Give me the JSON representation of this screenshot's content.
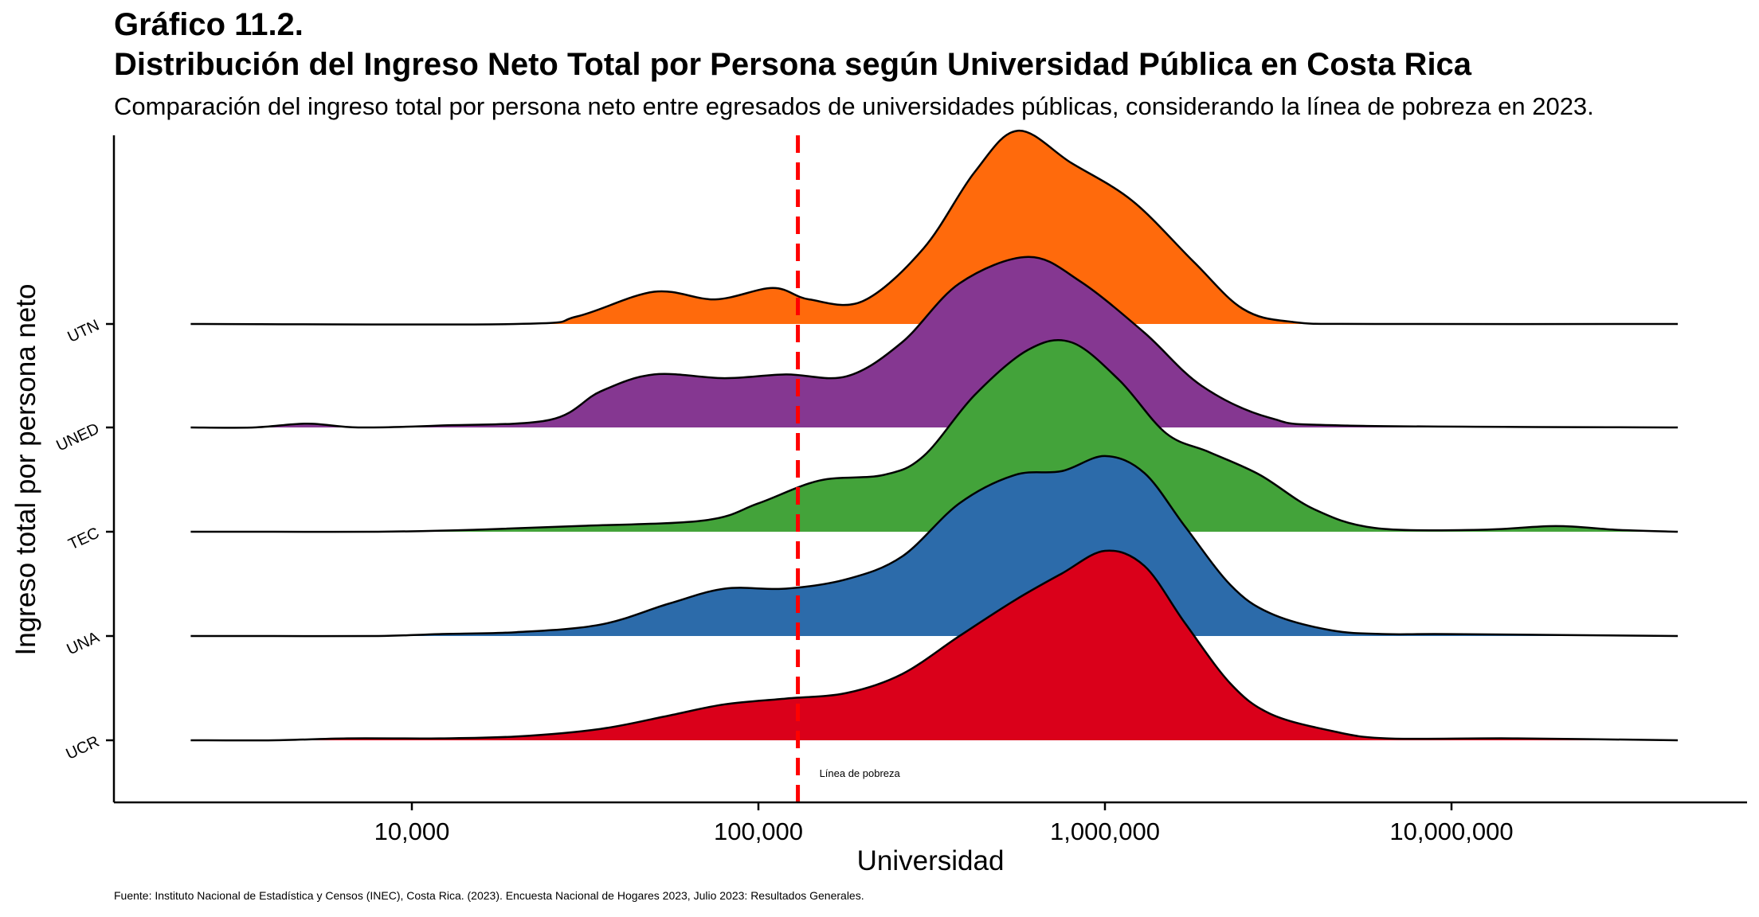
{
  "chart_data": {
    "type": "ridgeline",
    "title": "Gráfico 11.2.",
    "subtitle_main": "Distribución del Ingreso Neto Total por Persona según Universidad Pública en Costa Rica",
    "subtitle": "Comparación del ingreso total por persona neto entre egresados de universidades públicas, considerando la línea de pobreza en 2023.",
    "xlabel": "Universidad",
    "ylabel": "Ingreso total por persona neto",
    "x_scale": "log10",
    "xlim": [
      2300,
      45000000
    ],
    "x_ticks": [
      {
        "value": 10000,
        "label": "10,000"
      },
      {
        "value": 100000,
        "label": "100,000"
      },
      {
        "value": 1000000,
        "label": "1,000,000"
      },
      {
        "value": 10000000,
        "label": "10,000,000"
      }
    ],
    "categories": [
      "UCR",
      "UNA",
      "TEC",
      "UNED",
      "UTN"
    ],
    "series": [
      {
        "name": "UCR",
        "color": "#DA001A",
        "points": [
          [
            2300,
            0.0
          ],
          [
            4000,
            0.0
          ],
          [
            6500,
            0.01
          ],
          [
            12000,
            0.01
          ],
          [
            20000,
            0.02
          ],
          [
            35000,
            0.06
          ],
          [
            55000,
            0.13
          ],
          [
            80000,
            0.19
          ],
          [
            120000,
            0.22
          ],
          [
            180000,
            0.25
          ],
          [
            260000,
            0.35
          ],
          [
            380000,
            0.55
          ],
          [
            550000,
            0.74
          ],
          [
            750000,
            0.88
          ],
          [
            1000000,
            1.0
          ],
          [
            1300000,
            0.92
          ],
          [
            1700000,
            0.62
          ],
          [
            2300000,
            0.3
          ],
          [
            3000000,
            0.14
          ],
          [
            4500000,
            0.05
          ],
          [
            6500000,
            0.01
          ],
          [
            15000000,
            0.01
          ],
          [
            45000000,
            0.0
          ]
        ]
      },
      {
        "name": "UNA",
        "color": "#2C6BAA",
        "points": [
          [
            2300,
            0.0
          ],
          [
            4000,
            0.0
          ],
          [
            8000,
            0.0
          ],
          [
            12000,
            0.01
          ],
          [
            20000,
            0.02
          ],
          [
            35000,
            0.06
          ],
          [
            55000,
            0.17
          ],
          [
            80000,
            0.25
          ],
          [
            120000,
            0.25
          ],
          [
            180000,
            0.3
          ],
          [
            260000,
            0.42
          ],
          [
            380000,
            0.7
          ],
          [
            550000,
            0.85
          ],
          [
            750000,
            0.87
          ],
          [
            1000000,
            0.95
          ],
          [
            1300000,
            0.86
          ],
          [
            1700000,
            0.58
          ],
          [
            2300000,
            0.27
          ],
          [
            3000000,
            0.12
          ],
          [
            4500000,
            0.03
          ],
          [
            6500000,
            0.01
          ],
          [
            10000000,
            0.01
          ],
          [
            45000000,
            0.0
          ]
        ]
      },
      {
        "name": "TEC",
        "color": "#43A33A",
        "points": [
          [
            2300,
            0.0
          ],
          [
            4000,
            0.0
          ],
          [
            8000,
            0.0
          ],
          [
            15000,
            0.01
          ],
          [
            30000,
            0.03
          ],
          [
            70000,
            0.06
          ],
          [
            100000,
            0.15
          ],
          [
            150000,
            0.27
          ],
          [
            230000,
            0.3
          ],
          [
            300000,
            0.4
          ],
          [
            420000,
            0.72
          ],
          [
            600000,
            0.96
          ],
          [
            800000,
            1.0
          ],
          [
            1100000,
            0.8
          ],
          [
            1500000,
            0.52
          ],
          [
            2000000,
            0.42
          ],
          [
            2800000,
            0.3
          ],
          [
            4000000,
            0.12
          ],
          [
            6000000,
            0.02
          ],
          [
            12000000,
            0.01
          ],
          [
            20000000,
            0.03
          ],
          [
            30000000,
            0.01
          ],
          [
            45000000,
            0.0
          ]
        ]
      },
      {
        "name": "UNED",
        "color": "#853791",
        "points": [
          [
            2300,
            0.0
          ],
          [
            3500,
            0.0
          ],
          [
            5000,
            0.02
          ],
          [
            7000,
            0.0
          ],
          [
            12000,
            0.01
          ],
          [
            25000,
            0.04
          ],
          [
            35000,
            0.19
          ],
          [
            50000,
            0.28
          ],
          [
            80000,
            0.26
          ],
          [
            120000,
            0.28
          ],
          [
            180000,
            0.27
          ],
          [
            260000,
            0.45
          ],
          [
            380000,
            0.76
          ],
          [
            600000,
            0.9
          ],
          [
            850000,
            0.77
          ],
          [
            1300000,
            0.5
          ],
          [
            1900000,
            0.22
          ],
          [
            3000000,
            0.05
          ],
          [
            5000000,
            0.01
          ],
          [
            45000000,
            0.0
          ]
        ]
      },
      {
        "name": "UTN",
        "color": "#FF6A0C",
        "points": [
          [
            2300,
            0.0
          ],
          [
            20000,
            0.0
          ],
          [
            30000,
            0.04
          ],
          [
            50000,
            0.17
          ],
          [
            75000,
            0.13
          ],
          [
            110000,
            0.19
          ],
          [
            140000,
            0.13
          ],
          [
            200000,
            0.12
          ],
          [
            300000,
            0.4
          ],
          [
            420000,
            0.8
          ],
          [
            560000,
            1.02
          ],
          [
            800000,
            0.85
          ],
          [
            1200000,
            0.65
          ],
          [
            1800000,
            0.33
          ],
          [
            2500000,
            0.08
          ],
          [
            3500000,
            0.01
          ],
          [
            6000000,
            0.0
          ],
          [
            45000000,
            0.0
          ]
        ]
      }
    ],
    "reference_line": {
      "value": 130000,
      "label": "Línea de pobreza",
      "color": "#FF0000",
      "style": "dashed"
    },
    "grid": false,
    "legend": "none"
  },
  "caption": "Fuente: Instituto Nacional de Estadística y Censos (INEC), Costa Rica. (2023). Encuesta Nacional de Hogares 2023, Julio 2023: Resultados Generales."
}
